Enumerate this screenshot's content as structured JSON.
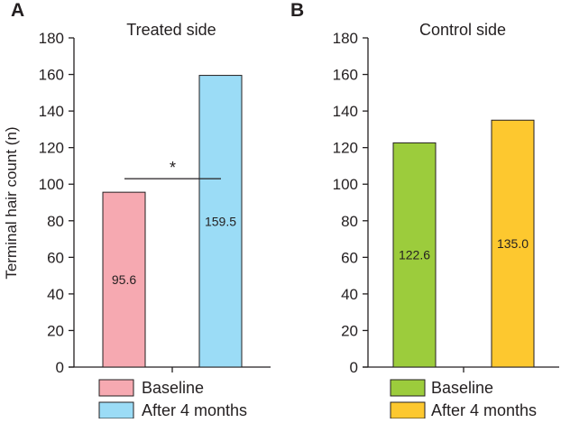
{
  "chart_data": [
    {
      "type": "bar",
      "panel": "A",
      "title": "Treated side",
      "ylabel": "Terminal hair count (n)",
      "xlabel": "",
      "ylim": [
        0,
        180
      ],
      "yticks": [
        "0",
        "20",
        "40",
        "60",
        "80",
        "100",
        "120",
        "140",
        "160",
        "180"
      ],
      "categories": [
        "Baseline",
        "After 4 months"
      ],
      "values": [
        95.6,
        159.5
      ],
      "data_labels": [
        "95.6",
        "159.5"
      ],
      "colors": [
        "#f6a9b1",
        "#9bdcf6"
      ],
      "significance": {
        "label": "*",
        "level": 103
      },
      "legend": [
        "Baseline",
        "After 4 months"
      ],
      "legend_position": "bottom"
    },
    {
      "type": "bar",
      "panel": "B",
      "title": "Control side",
      "ylabel": "",
      "xlabel": "",
      "ylim": [
        0,
        180
      ],
      "yticks": [
        "0",
        "20",
        "40",
        "60",
        "80",
        "100",
        "120",
        "140",
        "160",
        "180"
      ],
      "categories": [
        "Baseline",
        "After 4 months"
      ],
      "values": [
        122.6,
        135.0
      ],
      "data_labels": [
        "122.6",
        "135.0"
      ],
      "colors": [
        "#9ccc3c",
        "#fdc82f"
      ],
      "legend": [
        "Baseline",
        "After 4 months"
      ],
      "legend_position": "bottom"
    }
  ]
}
